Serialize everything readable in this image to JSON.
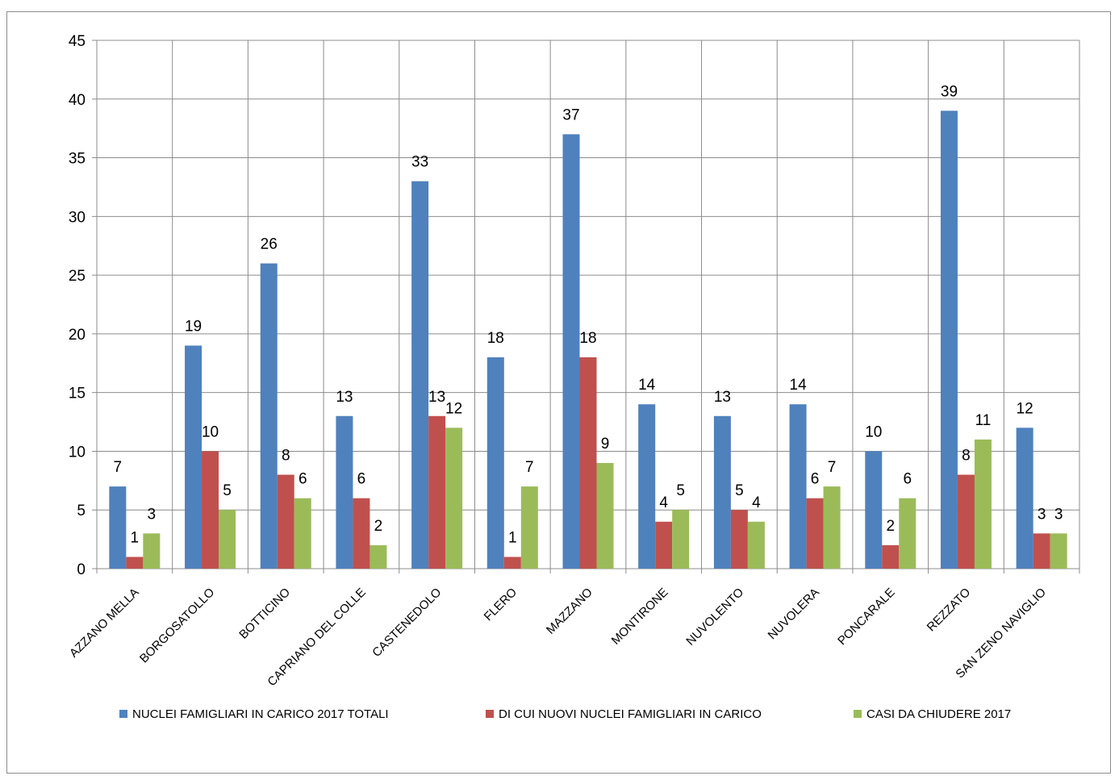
{
  "chart_data": {
    "type": "bar",
    "title": "",
    "xlabel": "",
    "ylabel": "",
    "ylim": [
      0,
      45
    ],
    "ytick_step": 5,
    "grid": true,
    "legend_position": "bottom",
    "data_labels": true,
    "categories": [
      "AZZANO MELLA",
      "BORGOSATOLLO",
      "BOTTICINO",
      "CAPRIANO DEL COLLE",
      "CASTENEDOLO",
      "FLERO",
      "MAZZANO",
      "MONTIRONE",
      "NUVOLENTO",
      "NUVOLERA",
      "PONCARALE",
      "REZZATO",
      "SAN ZENO NAVIGLIO"
    ],
    "series": [
      {
        "name": "NUCLEI FAMIGLIARI IN CARICO 2017 TOTALI",
        "color": "#4F81BD",
        "values": [
          7,
          19,
          26,
          13,
          33,
          18,
          37,
          14,
          13,
          14,
          10,
          39,
          12
        ]
      },
      {
        "name": "DI CUI NUOVI NUCLEI FAMIGLIARI IN CARICO",
        "color": "#C0504D",
        "values": [
          1,
          10,
          8,
          6,
          13,
          1,
          18,
          4,
          5,
          6,
          2,
          8,
          3
        ]
      },
      {
        "name": "CASI DA CHIUDERE 2017",
        "color": "#9BBB59",
        "values": [
          3,
          5,
          6,
          2,
          12,
          7,
          9,
          5,
          4,
          7,
          6,
          11,
          3
        ]
      }
    ]
  }
}
